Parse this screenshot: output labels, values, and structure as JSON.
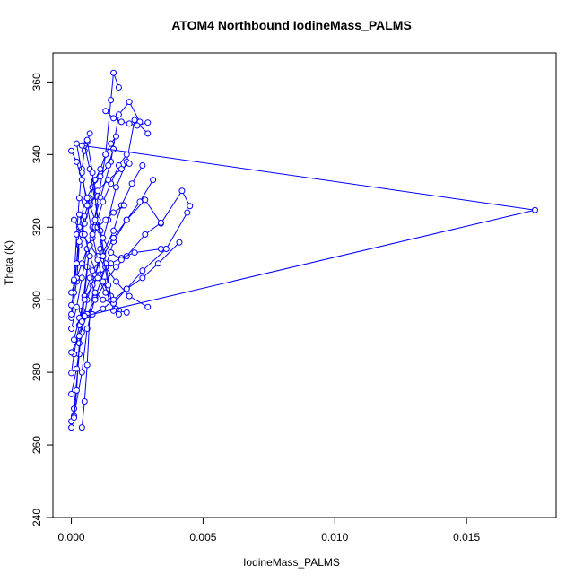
{
  "chart_data": {
    "type": "line",
    "title": "ATOM4 Northbound IodineMass_PALMS",
    "xlabel": "IodineMass_PALMS",
    "ylabel": "Theta (K)",
    "xlim": [
      -0.0007,
      0.0184
    ],
    "ylim": [
      240,
      368
    ],
    "xticks": [
      0.0,
      0.005,
      0.01,
      0.015
    ],
    "xtick_labels": [
      "0.000",
      "0.005",
      "0.010",
      "0.015"
    ],
    "yticks": [
      240,
      260,
      280,
      300,
      320,
      340,
      360
    ],
    "ytick_labels": [
      "240",
      "260",
      "280",
      "300",
      "320",
      "340",
      "360"
    ],
    "grid": false,
    "series_color": "#0000ff",
    "marker": "open-circle",
    "series": [
      {
        "name": "",
        "x": [
          0.0,
          0.0001,
          0.0004,
          0.0006,
          0.0009,
          0.0013,
          0.0016,
          0.0021,
          0.0028,
          0.0034,
          0.0042,
          0.0045
        ],
        "y": [
          264.8,
          268.0,
          280.0,
          292.0,
          300.5,
          309.0,
          316.0,
          322.0,
          327.5,
          321.0,
          330.0,
          325.8
        ]
      },
      {
        "name": "",
        "x": [
          0.0004,
          0.0005,
          0.0006,
          0.0007,
          0.0009,
          0.0011,
          0.0014,
          0.0017,
          0.0021,
          0.0024,
          0.0029
        ],
        "y": [
          264.8,
          272.0,
          282.0,
          296.0,
          306.0,
          314.0,
          322.0,
          331.0,
          338.0,
          349.5,
          345.8
        ]
      },
      {
        "name": "",
        "x": [
          0.0,
          0.0001,
          0.0003,
          0.0004,
          0.0006,
          0.0008,
          0.0011,
          0.0015,
          0.0018,
          0.0022,
          0.0026
        ],
        "y": [
          266.5,
          270.0,
          285.0,
          297.0,
          309.0,
          320.0,
          328.0,
          338.0,
          351.0,
          354.5,
          349.0
        ]
      },
      {
        "name": "",
        "x": [
          0.0001,
          0.0002,
          0.0003,
          0.0005,
          0.0007,
          0.001,
          0.0013,
          0.0015,
          0.0016,
          0.0018
        ],
        "y": [
          267.5,
          275.0,
          288.0,
          301.0,
          315.0,
          327.0,
          340.0,
          355.0,
          362.5,
          358.5
        ]
      },
      {
        "name": "",
        "x": [
          0.0,
          0.0002,
          0.0004,
          0.0006,
          0.0009,
          0.0012,
          0.0016,
          0.0019,
          0.0023,
          0.0027
        ],
        "y": [
          274.0,
          281.0,
          291.0,
          300.0,
          307.0,
          313.0,
          319.0,
          326.0,
          332.0,
          337.0
        ]
      },
      {
        "name": "",
        "x": [
          0.0,
          0.0001,
          0.0003,
          0.0005,
          0.0008,
          0.0012,
          0.0016,
          0.0021,
          0.0026,
          0.0031
        ],
        "y": [
          279.8,
          285.0,
          293.0,
          301.0,
          308.0,
          312.0,
          317.0,
          322.0,
          327.0,
          333.0
        ]
      },
      {
        "name": "",
        "x": [
          0.0,
          0.0003,
          0.0006,
          0.0009,
          0.0013,
          0.0017,
          0.0021,
          0.0028,
          0.0034
        ],
        "y": [
          285.5,
          290.0,
          296.0,
          300.0,
          305.0,
          309.0,
          312.0,
          318.0,
          321.2
        ]
      },
      {
        "name": "",
        "x": [
          0.0001,
          0.0003,
          0.0005,
          0.0008,
          0.0011,
          0.0015,
          0.0019,
          0.0024,
          0.0034
        ],
        "y": [
          289.0,
          295.0,
          300.0,
          304.0,
          307.0,
          310.0,
          311.5,
          313.0,
          314.0
        ]
      },
      {
        "name": "",
        "x": [
          0.0,
          0.0002,
          0.0004,
          0.0006,
          0.0009,
          0.0012,
          0.0015,
          0.0018,
          0.0021
        ],
        "y": [
          292.0,
          298.0,
          306.0,
          314.0,
          320.0,
          327.0,
          332.0,
          337.0,
          340.0
        ]
      },
      {
        "name": "",
        "x": [
          0.0,
          0.0002,
          0.0003,
          0.0005,
          0.0007,
          0.0009,
          0.0011,
          0.0013,
          0.0015,
          0.0017
        ],
        "y": [
          295.0,
          305.0,
          315.0,
          323.0,
          328.0,
          333.0,
          336.0,
          340.0,
          343.0,
          345.0
        ]
      },
      {
        "name": "",
        "x": [
          0.0,
          0.0001,
          0.0002,
          0.0003,
          0.0004,
          0.0005,
          0.0006,
          0.0007
        ],
        "y": [
          296.0,
          305.0,
          318.0,
          328.0,
          336.0,
          341.0,
          343.5,
          345.8
        ]
      },
      {
        "name": "",
        "x": [
          0.0,
          0.0001,
          0.0002,
          0.0003,
          0.0005,
          0.0008,
          0.0011,
          0.0014,
          0.0016
        ],
        "y": [
          298.5,
          302.0,
          310.0,
          320.0,
          327.0,
          331.0,
          334.0,
          337.0,
          341.5
        ]
      },
      {
        "name": "",
        "x": [
          0.0,
          0.0002,
          0.0004,
          0.0006,
          0.0008,
          0.001,
          0.0013,
          0.0016,
          0.002
        ],
        "y": [
          302.0,
          306.0,
          310.0,
          314.0,
          317.0,
          320.0,
          322.0,
          324.0,
          326.0
        ]
      },
      {
        "name": "",
        "x": [
          0.0001,
          0.0002,
          0.0003,
          0.0005,
          0.0007,
          0.001,
          0.0014,
          0.0019,
          0.0022
        ],
        "y": [
          305.5,
          310.0,
          316.0,
          321.0,
          326.0,
          330.0,
          333.0,
          336.0,
          337.5
        ]
      },
      {
        "name": "",
        "x": [
          0.0001,
          0.0004,
          0.0007,
          0.001,
          0.0013,
          0.0017,
          0.0022,
          0.0029
        ],
        "y": [
          322.0,
          318.0,
          315.0,
          312.0,
          309.0,
          305.0,
          301.0,
          298.0
        ]
      },
      {
        "name": "",
        "x": [
          0.0003,
          0.0005,
          0.0007,
          0.001,
          0.0013,
          0.0016,
          0.0018,
          0.0021
        ],
        "y": [
          323.5,
          318.0,
          312.0,
          306.0,
          302.0,
          299.0,
          297.0,
          296.5
        ]
      },
      {
        "name": "",
        "x": [
          0.0002,
          0.0004,
          0.0006,
          0.0008,
          0.001,
          0.0012,
          0.0015,
          0.0018
        ],
        "y": [
          343.0,
          335.0,
          326.0,
          318.0,
          311.0,
          305.0,
          300.0,
          296.0
        ]
      },
      {
        "name": "",
        "x": [
          0.0005,
          0.0007,
          0.0009,
          0.0011,
          0.0013,
          0.0015,
          0.0017
        ],
        "y": [
          342.5,
          336.0,
          327.0,
          319.0,
          310.0,
          301.0,
          297.5
        ]
      },
      {
        "name": "",
        "x": [
          0.0006,
          0.0008,
          0.001,
          0.0012,
          0.0014,
          0.0016
        ],
        "y": [
          344.0,
          335.0,
          322.0,
          312.0,
          304.0,
          297.0
        ]
      },
      {
        "name": "",
        "x": [
          0.0013,
          0.0016,
          0.0019,
          0.0022,
          0.0025,
          0.0029
        ],
        "y": [
          352.0,
          350.0,
          349.0,
          348.5,
          348.0,
          348.8
        ]
      },
      {
        "name": "",
        "x": [
          0.0007,
          0.0009,
          0.0012,
          0.0016,
          0.0021,
          0.0027,
          0.0036,
          0.0044
        ],
        "y": [
          306.0,
          302.0,
          300.0,
          299.0,
          303.0,
          308.0,
          314.0,
          324.0
        ]
      },
      {
        "name": "",
        "x": [
          0.0004,
          0.0008,
          0.0012,
          0.0016,
          0.0021,
          0.0027,
          0.0033,
          0.0041
        ],
        "y": [
          294.0,
          296.0,
          297.5,
          300.0,
          303.0,
          306.0,
          310.0,
          315.8
        ]
      },
      {
        "name": "",
        "x": [
          0.0,
          0.0002,
          0.0004,
          0.0006,
          0.0009,
          0.0012,
          0.0015,
          0.0019
        ],
        "y": [
          341.0,
          338.0,
          333.0,
          328.0,
          322.0,
          317.0,
          313.0,
          311.0
        ]
      },
      {
        "name": "",
        "x": [
          0.0004,
          0.0176,
          0.0005
        ],
        "y": [
          342.5,
          324.7,
          295.5
        ]
      }
    ]
  }
}
